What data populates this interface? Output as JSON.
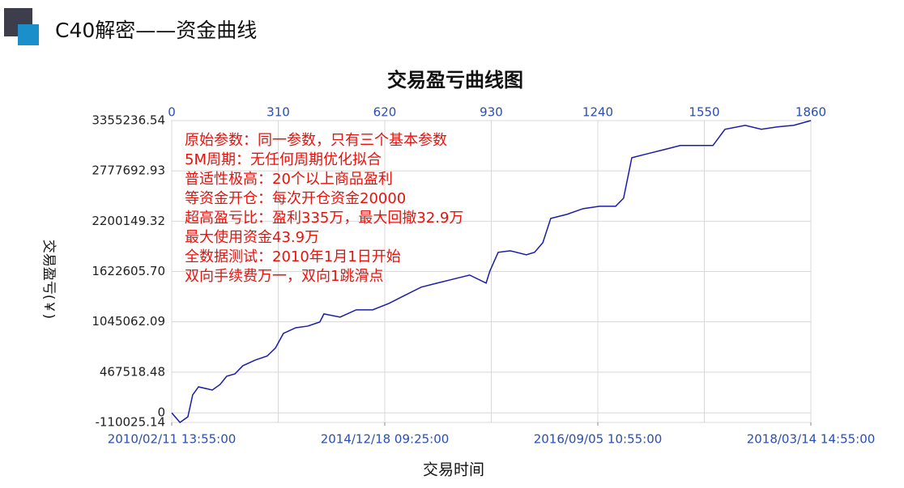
{
  "header": {
    "title": "C40解密——资金曲线"
  },
  "chart_data": {
    "type": "line",
    "title": "交易盈亏曲线图",
    "x_label": "交易时间",
    "y_label": "交易盈亏(￥)",
    "annotations": [
      "原始参数：同一参数，只有三个基本参数",
      "5M周期：无任何周期优化拟合",
      "普适性极高：20个以上商品盈利",
      "等资金开仓：每次开仓资金20000",
      "超高盈亏比：盈利335万，最大回撤32.9万",
      "最大使用资金43.9万",
      "全数据测试：2010年1月1日开始",
      "双向手续费万一，双向1跳滑点"
    ],
    "x": [
      0,
      24,
      47,
      61,
      78,
      118,
      141,
      160,
      184,
      207,
      243,
      278,
      302,
      325,
      361,
      396,
      431,
      443,
      490,
      537,
      585,
      632,
      679,
      726,
      773,
      820,
      867,
      915,
      926,
      950,
      985,
      1032,
      1056,
      1080,
      1103,
      1150,
      1197,
      1245,
      1292,
      1315,
      1339,
      1386,
      1433,
      1480,
      1527,
      1575,
      1610,
      1669,
      1716,
      1763,
      1810,
      1860
    ],
    "series": [
      {
        "color": "#1c1ca8",
        "values": [
          0,
          -110000,
          -45000,
          206000,
          299000,
          262000,
          327000,
          420000,
          448000,
          541000,
          606000,
          653000,
          746000,
          912000,
          977000,
          996000,
          1043000,
          1136000,
          1099000,
          1183000,
          1183000,
          1256000,
          1350000,
          1443000,
          1490000,
          1536000,
          1582000,
          1490000,
          1629000,
          1843000,
          1861000,
          1815000,
          1843000,
          1954000,
          2232000,
          2279000,
          2344000,
          2372000,
          2372000,
          2464000,
          2929000,
          2976000,
          3022000,
          3069000,
          3069000,
          3069000,
          3255000,
          3301000,
          3255000,
          3283000,
          3301000,
          3355236.54
        ]
      }
    ],
    "xlim": [
      0,
      1860
    ],
    "xticks": [
      0,
      310,
      620,
      930,
      1240,
      1550,
      1860
    ],
    "x_bottom_ticks": [
      {
        "value": 0,
        "label": "2010/02/11 13:55:00"
      },
      {
        "value": 620,
        "label": "2014/12/18 09:25:00"
      },
      {
        "value": 1240,
        "label": "2016/09/05 10:55:00"
      },
      {
        "value": 1860,
        "label": "2018/03/14 14:55:00"
      }
    ],
    "ylim": [
      -110025.14,
      3355236.54
    ],
    "yticks": [
      -110025.14,
      0,
      467518.48,
      1045062.09,
      {
        "value": 1622605.7,
        "label": "1622605.70"
      },
      2200149.32,
      2777692.93,
      3355236.54
    ],
    "grid": true
  }
}
